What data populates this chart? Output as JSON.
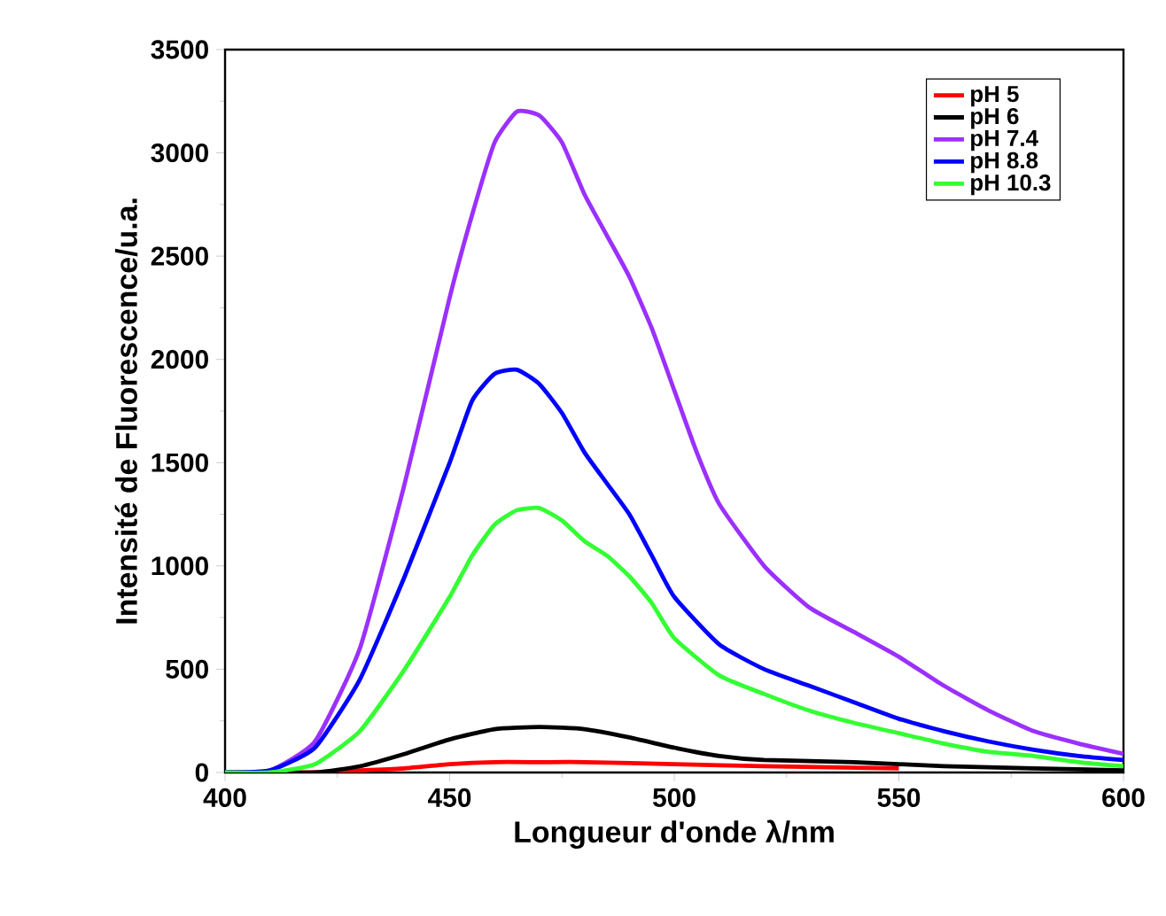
{
  "chart_data": {
    "type": "line",
    "xlabel": "Longueur d'onde λ/nm",
    "ylabel": "Intensité de Fluorescence/u.a.",
    "xlim": [
      400,
      600
    ],
    "ylim": [
      0,
      3500
    ],
    "xticks": [
      400,
      450,
      500,
      550,
      600
    ],
    "yticks": [
      0,
      500,
      1000,
      1500,
      2000,
      2500,
      3000,
      3500
    ],
    "grid": false,
    "legend": "top right",
    "marker": "none",
    "line_style": "solid",
    "series": [
      {
        "name": "pH 5",
        "color": "#ff0000",
        "x": [
          400,
          420,
          430,
          440,
          450,
          460,
          470,
          480,
          500,
          520,
          550
        ],
        "values": [
          0,
          0,
          10,
          20,
          40,
          50,
          50,
          50,
          40,
          30,
          20
        ]
      },
      {
        "name": "pH 6",
        "color": "#000000",
        "x": [
          400,
          420,
          430,
          440,
          450,
          460,
          470,
          480,
          490,
          500,
          510,
          520,
          540,
          560,
          580,
          600
        ],
        "values": [
          0,
          0,
          30,
          90,
          160,
          210,
          220,
          210,
          170,
          120,
          80,
          60,
          50,
          30,
          20,
          10
        ]
      },
      {
        "name": "pH 7.4",
        "color": "#9b30ff",
        "x": [
          400,
          410,
          420,
          430,
          440,
          450,
          455,
          460,
          465,
          470,
          475,
          480,
          485,
          490,
          495,
          500,
          505,
          510,
          520,
          530,
          540,
          550,
          560,
          570,
          580,
          590,
          600
        ],
        "values": [
          0,
          10,
          150,
          600,
          1400,
          2300,
          2700,
          3050,
          3200,
          3180,
          3050,
          2800,
          2600,
          2400,
          2150,
          1850,
          1550,
          1300,
          1000,
          800,
          680,
          560,
          420,
          300,
          200,
          140,
          90
        ]
      },
      {
        "name": "pH 8.8",
        "color": "#0000ff",
        "x": [
          400,
          410,
          420,
          430,
          440,
          450,
          455,
          460,
          465,
          470,
          475,
          480,
          485,
          490,
          495,
          500,
          510,
          520,
          530,
          540,
          550,
          560,
          570,
          580,
          590,
          600
        ],
        "values": [
          0,
          10,
          120,
          450,
          950,
          1500,
          1800,
          1930,
          1950,
          1880,
          1740,
          1550,
          1400,
          1250,
          1050,
          850,
          620,
          500,
          420,
          340,
          260,
          200,
          150,
          110,
          80,
          60
        ]
      },
      {
        "name": "pH 10.3",
        "color": "#33ff33",
        "x": [
          400,
          410,
          420,
          430,
          440,
          450,
          455,
          460,
          465,
          470,
          475,
          480,
          485,
          490,
          495,
          500,
          510,
          520,
          530,
          540,
          550,
          560,
          570,
          580,
          590,
          600
        ],
        "values": [
          0,
          0,
          40,
          200,
          500,
          850,
          1050,
          1200,
          1270,
          1280,
          1220,
          1120,
          1050,
          950,
          820,
          650,
          470,
          380,
          300,
          240,
          190,
          140,
          100,
          80,
          50,
          30
        ]
      }
    ]
  }
}
